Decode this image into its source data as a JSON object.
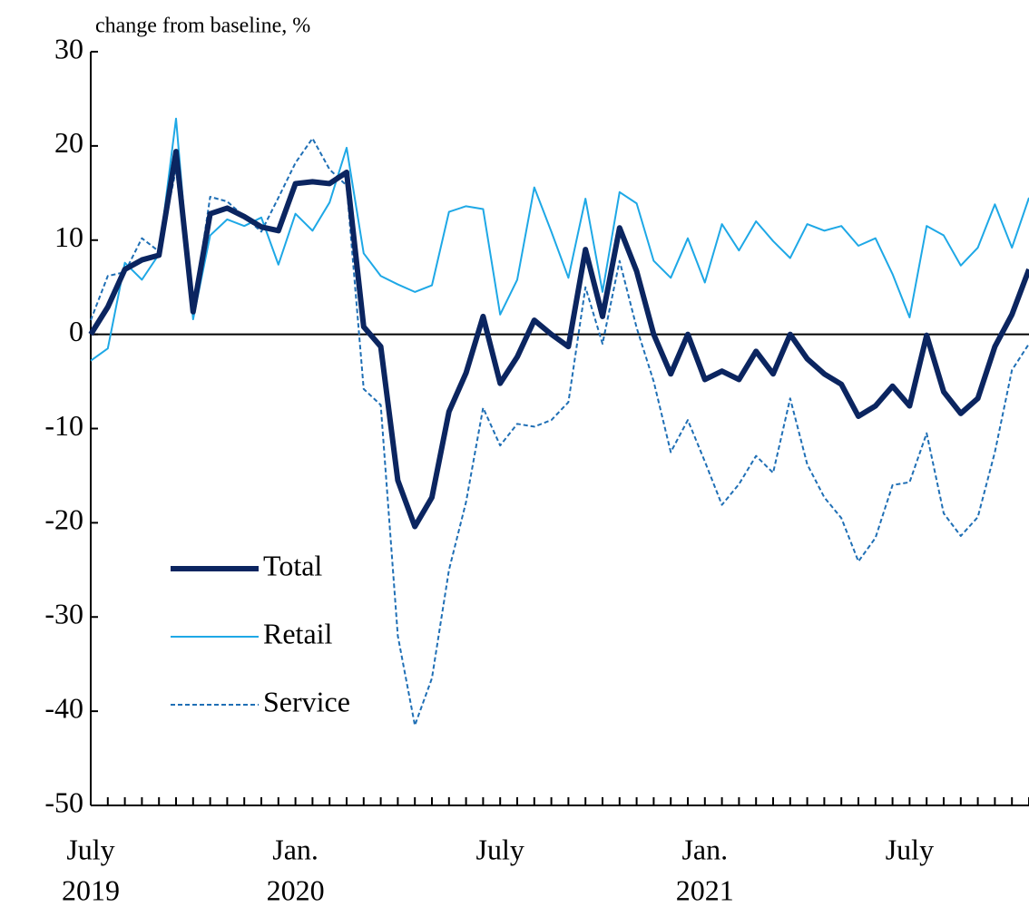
{
  "chart_data": {
    "type": "line",
    "title": "change from baseline, %",
    "categories": [
      "July",
      null,
      null,
      null,
      null,
      null,
      null,
      null,
      null,
      null,
      null,
      null,
      "Jan.",
      null,
      null,
      null,
      null,
      null,
      null,
      null,
      null,
      null,
      null,
      null,
      "July",
      null,
      null,
      null,
      null,
      null,
      null,
      null,
      null,
      null,
      null,
      null,
      "Jan.",
      null,
      null,
      null,
      null,
      null,
      null,
      null,
      null,
      null,
      null,
      null,
      "July",
      null,
      null,
      null,
      null,
      null,
      null,
      null
    ],
    "years": [
      "2019",
      null,
      null,
      null,
      null,
      null,
      null,
      null,
      null,
      null,
      null,
      null,
      "2020",
      null,
      null,
      null,
      null,
      null,
      null,
      null,
      null,
      null,
      null,
      null,
      null,
      null,
      null,
      null,
      null,
      null,
      null,
      null,
      null,
      null,
      null,
      null,
      "2021",
      null,
      null,
      null,
      null,
      null,
      null,
      null,
      null,
      null,
      null,
      null,
      null,
      null,
      null,
      null,
      null,
      null,
      null,
      null
    ],
    "series": [
      {
        "name": "Total",
        "color": "#0b2560",
        "line_width": 6,
        "line_style": "solid",
        "values": [
          0,
          2.9,
          6.9,
          7.9,
          8.4,
          19.4,
          2.4,
          12.8,
          13.4,
          12.5,
          11.4,
          11,
          16,
          16.2,
          16,
          17.2,
          0.8,
          -1.3,
          -15.5,
          -20.4,
          -17.3,
          -8.2,
          -4.1,
          1.9,
          -5.2,
          -2.4,
          1.5,
          0,
          -1.3,
          9,
          1.9,
          11.3,
          6.7,
          0,
          -4.2,
          0,
          -4.8,
          -3.9,
          -4.8,
          -1.8,
          -4.2,
          0,
          -2.6,
          -4.2,
          -5.3,
          -8.7,
          -7.6,
          -5.5,
          -7.6,
          -0.1,
          -6.1,
          -8.4,
          -6.8,
          -1.3,
          2.1,
          6.9
        ]
      },
      {
        "name": "Retail",
        "color": "#1ea8e6",
        "line_width": 2,
        "line_style": "solid",
        "values": [
          -2.8,
          -1.5,
          7.6,
          5.8,
          8.5,
          22.9,
          1.6,
          10.5,
          12.2,
          11.5,
          12.4,
          7.4,
          12.8,
          11,
          14,
          19.8,
          8.6,
          6.2,
          5.3,
          4.5,
          5.2,
          13,
          13.6,
          13.3,
          2.1,
          5.8,
          15.6,
          10.9,
          6,
          14.4,
          4.5,
          15.1,
          13.9,
          7.8,
          6,
          10.2,
          5.5,
          11.7,
          8.9,
          12,
          9.9,
          8.1,
          11.7,
          11,
          11.5,
          9.4,
          10.2,
          6.4,
          1.8,
          11.5,
          10.5,
          7.3,
          9.2,
          13.8,
          9.2,
          14.5
        ]
      },
      {
        "name": "Service",
        "color": "#1f6fb5",
        "line_width": 2,
        "line_style": "dashed",
        "values": [
          1.5,
          6.2,
          6.6,
          10.2,
          8.8,
          17.5,
          2.4,
          14.6,
          14.1,
          12.5,
          10.9,
          14.5,
          18.2,
          20.8,
          17.5,
          15.8,
          -5.8,
          -7.5,
          -32,
          -41.5,
          -36.5,
          -25,
          -17.8,
          -7.8,
          -11.8,
          -9.5,
          -9.8,
          -9.1,
          -7.2,
          5,
          -1,
          7.8,
          0.7,
          -5,
          -12.5,
          -9.1,
          -13.5,
          -18.1,
          -15.9,
          -12.9,
          -14.7,
          -6.8,
          -13.8,
          -17.3,
          -19.5,
          -24.1,
          -21.6,
          -16,
          -15.7,
          -10.5,
          -19,
          -21.4,
          -19.4,
          -12.5,
          -3.8,
          -1
        ]
      }
    ],
    "ylim": [
      -50,
      30
    ],
    "yticks": [
      -50,
      -40,
      -30,
      -20,
      -10,
      0,
      10,
      20,
      30
    ],
    "hline": 0,
    "legend": "lower left",
    "grid": false
  }
}
